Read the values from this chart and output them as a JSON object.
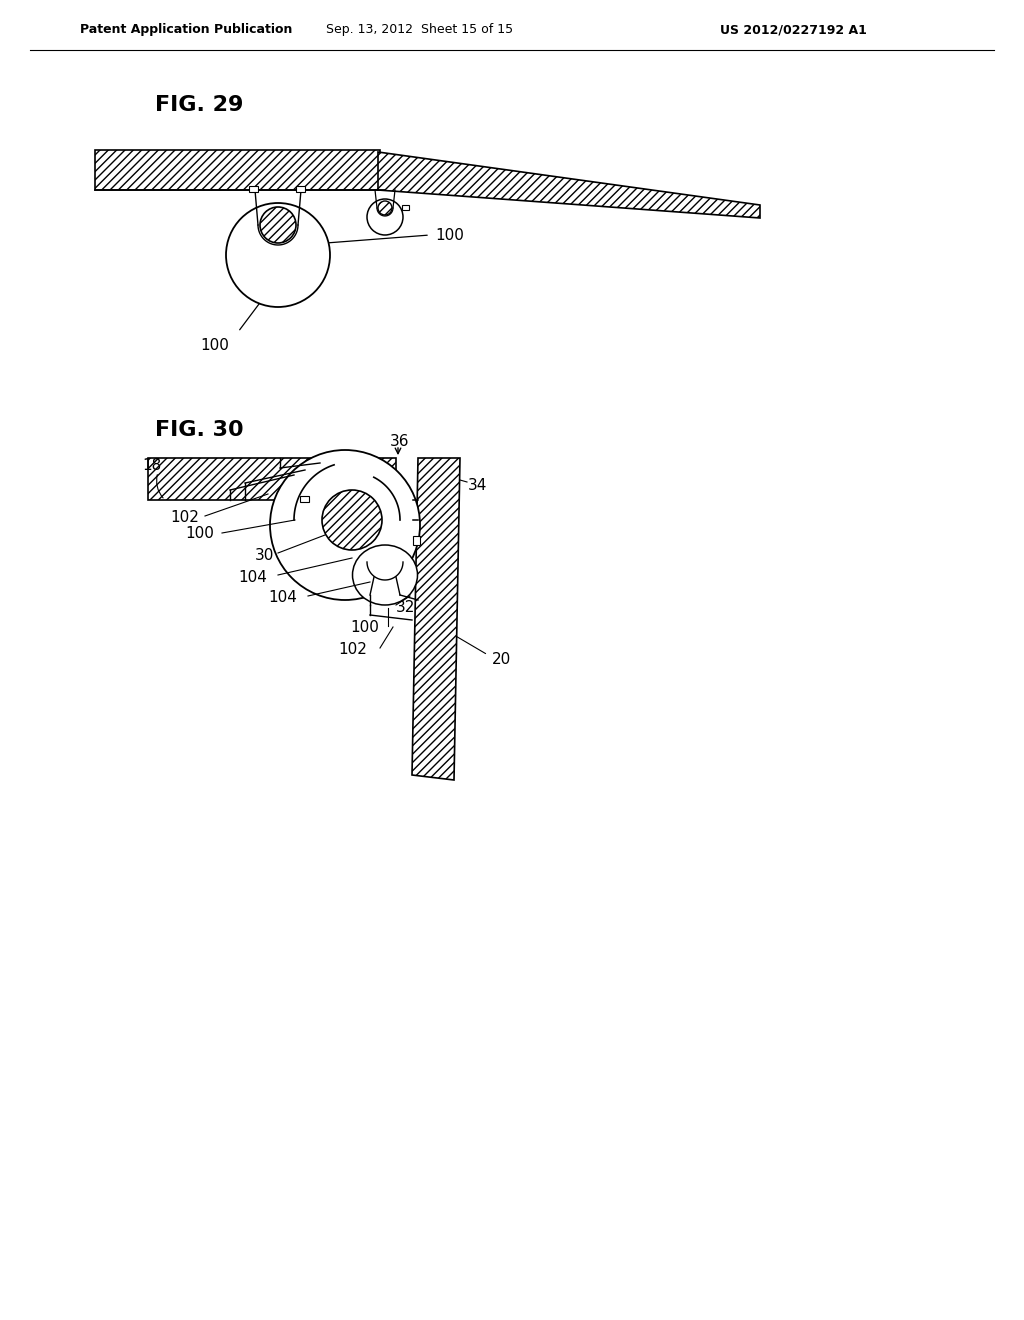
{
  "bg_color": "#ffffff",
  "header_text": "Patent Application Publication",
  "header_date": "Sep. 13, 2012  Sheet 15 of 15",
  "header_patent": "US 2012/0227192 A1",
  "fig29_label": "FIG. 29",
  "fig30_label": "FIG. 30",
  "line_color": "#000000",
  "hatch_pattern": "////",
  "label_fontsize": 11,
  "header_fontsize": 9,
  "fig_label_fontsize": 16
}
